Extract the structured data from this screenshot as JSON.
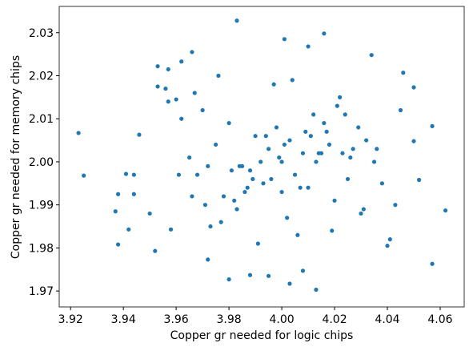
{
  "chart_data": {
    "type": "scatter",
    "xlabel": "Copper gr needed for logic chips",
    "ylabel": "Copper gr needed for memory chips",
    "color": "#1f77b4",
    "xlim": [
      3.9157,
      4.0691
    ],
    "ylim": [
      1.9663,
      2.0361
    ],
    "xticks": [
      3.92,
      3.94,
      3.96,
      3.98,
      {
        "value": 4,
        "label": "4.00"
      },
      4.02,
      4.04,
      4.06
    ],
    "yticks": [
      1.97,
      1.98,
      1.99,
      {
        "value": 2,
        "label": "2.00"
      },
      2.01,
      2.02,
      2.03
    ],
    "x": [
      3.923,
      3.925,
      3.938,
      3.937,
      3.938,
      3.941,
      3.944,
      3.944,
      3.942,
      3.946,
      3.952,
      3.953,
      3.957,
      3.962,
      3.966,
      3.98,
      3.983,
      3.988,
      3.995,
      4.001,
      4.003,
      4.008,
      4.01,
      4.013,
      4.016,
      4.034,
      4.046,
      4.05,
      4.057,
      4.057,
      4.062,
      4.052,
      4.05,
      4.04,
      3.972,
      3.958,
      3.96,
      3.953,
      4.0,
      3.995,
      4.005,
      3.99,
      4.01,
      3.985,
      4.015,
      3.98,
      4.02,
      3.975,
      4.025,
      3.97,
      4.03,
      3.965,
      4.035,
      4.0,
      3.998,
      4.003,
      3.993,
      4.008,
      3.988,
      4.012,
      3.983,
      4.017,
      3.978,
      4.022,
      3.973,
      4.027,
      3.968,
      4.032,
      4.038,
      3.962,
      4.043,
      3.957,
      4.002,
      3.997,
      4.006,
      3.992,
      4.011,
      3.987,
      4.016,
      3.982,
      4.021,
      3.977,
      4.026,
      3.972,
      4.031,
      3.967,
      4.001,
      3.996,
      4.004,
      3.991,
      4.009,
      3.986,
      4.014,
      3.981,
      4.019,
      3.976,
      4.024,
      3.971,
      4.029,
      3.966,
      4.036,
      3.961,
      4.041,
      3.956,
      4.045,
      3.95,
      3.999,
      4.007,
      3.994,
      4.013,
      3.989,
      4.018,
      3.984,
      4.023
    ],
    "y": [
      2.0067,
      1.9968,
      1.9808,
      1.9885,
      1.9925,
      1.9972,
      1.997,
      1.9925,
      1.9843,
      2.0063,
      1.9793,
      2.0222,
      2.0215,
      2.0233,
      2.0255,
      1.9727,
      2.0328,
      1.9737,
      1.9735,
      2.0285,
      1.9717,
      1.9747,
      2.0268,
      1.9703,
      2.0298,
      2.0248,
      2.0207,
      2.0173,
      2.0083,
      1.9763,
      1.9887,
      1.9958,
      2.0048,
      1.9805,
      1.9773,
      1.9843,
      2.0145,
      2.0175,
      2.0,
      2.003,
      1.997,
      2.006,
      1.994,
      1.999,
      2.002,
      2.009,
      1.991,
      2.004,
      1.996,
      2.012,
      1.988,
      2.001,
      2.0,
      1.993,
      2.008,
      2.005,
      1.995,
      2.002,
      1.998,
      2.011,
      1.989,
      2.007,
      1.992,
      2.015,
      1.985,
      2.003,
      1.997,
      2.005,
      1.995,
      2.01,
      1.99,
      2.014,
      1.987,
      2.018,
      1.983,
      2.0,
      2.006,
      1.994,
      2.009,
      1.991,
      2.013,
      1.986,
      2.001,
      1.999,
      1.989,
      2.016,
      2.004,
      1.996,
      2.019,
      1.981,
      2.007,
      1.993,
      2.002,
      1.998,
      1.984,
      2.02,
      2.011,
      1.99,
      2.008,
      1.992,
      2.003,
      1.997,
      1.982,
      2.017,
      2.012,
      1.988,
      2.001,
      1.994,
      2.006,
      2.0,
      1.996,
      2.004,
      1.999,
      2.002
    ]
  }
}
